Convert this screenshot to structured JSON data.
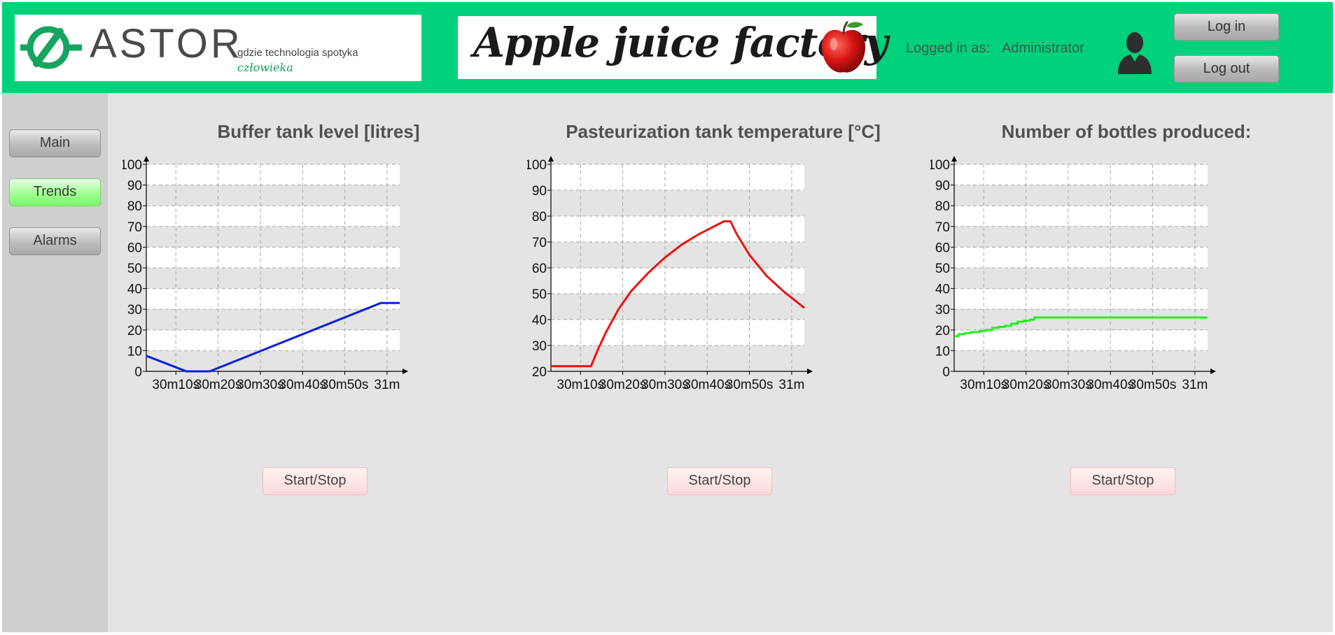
{
  "header": {
    "logo": {
      "word": "ASTOR",
      "tagline": "gdzie technologia spotyka",
      "script": "człowieka"
    },
    "banner_title": "Apple juice factory",
    "logged_in_label": "Logged in as:",
    "logged_in_user": "Administrator",
    "login_label": "Log in",
    "logout_label": "Log out",
    "icons": [
      "astor-logo-icon",
      "apple-icon",
      "user-icon"
    ]
  },
  "sidebar": {
    "items": [
      {
        "label": "Main",
        "active": false
      },
      {
        "label": "Trends",
        "active": true
      },
      {
        "label": "Alarms",
        "active": false
      }
    ]
  },
  "colors": {
    "header": "#00d17a",
    "active_nav": "#9cff8e",
    "buffer_series": "#0b1fe0",
    "temperature_series": "#f01010",
    "bottles_series": "#22f022"
  },
  "panels": [
    {
      "title": "Buffer tank level [litres]",
      "button_label": "Start/Stop"
    },
    {
      "title": "Pasteurization tank temperature [°C]",
      "button_label": "Start/Stop"
    },
    {
      "title": "Number of bottles produced:",
      "button_label": "Start/Stop"
    }
  ],
  "chart_data": [
    {
      "type": "line",
      "title": "Buffer tank level [litres]",
      "x_tick_labels": [
        "30m10s",
        "30m20s",
        "30m30s",
        "30m40s",
        "30m50s",
        "31m"
      ],
      "x_ticks_seconds": [
        10,
        20,
        30,
        40,
        50,
        60
      ],
      "xlim_seconds": [
        3,
        63
      ],
      "ylim": [
        0,
        100
      ],
      "y_ticks": [
        0,
        10,
        20,
        30,
        40,
        50,
        60,
        70,
        80,
        90,
        100
      ],
      "grid": true,
      "series": [
        {
          "color": "#0b1fe0",
          "x_seconds": [
            3,
            12.5,
            18,
            58.5,
            63
          ],
          "values": [
            7.5,
            0,
            0,
            33,
            33
          ]
        }
      ]
    },
    {
      "type": "line",
      "title": "Pasteurization tank temperature [°C]",
      "x_tick_labels": [
        "30m10s",
        "30m20s",
        "30m30s",
        "30m40s",
        "30m50s",
        "31m"
      ],
      "x_ticks_seconds": [
        10,
        20,
        30,
        40,
        50,
        60
      ],
      "xlim_seconds": [
        3,
        63
      ],
      "ylim": [
        20,
        100
      ],
      "y_ticks": [
        20,
        30,
        40,
        50,
        60,
        70,
        80,
        90,
        100
      ],
      "grid": true,
      "series": [
        {
          "color": "#f01010",
          "x_seconds": [
            3,
            12.5,
            14,
            16,
            19,
            22,
            26,
            30,
            34,
            38,
            41,
            44,
            45.5,
            47,
            50,
            54,
            58,
            63
          ],
          "values": [
            22,
            22,
            28,
            35,
            44,
            51,
            58,
            64,
            69,
            73,
            75.5,
            78,
            78,
            73,
            65,
            57,
            51,
            44.5
          ]
        }
      ]
    },
    {
      "type": "line",
      "title": "Number of bottles produced:",
      "x_tick_labels": [
        "30m10s",
        "30m20s",
        "30m30s",
        "30m40s",
        "30m50s",
        "31m"
      ],
      "x_ticks_seconds": [
        10,
        20,
        30,
        40,
        50,
        60
      ],
      "xlim_seconds": [
        3,
        63
      ],
      "ylim": [
        0,
        100
      ],
      "y_ticks": [
        0,
        10,
        20,
        30,
        40,
        50,
        60,
        70,
        80,
        90,
        100
      ],
      "grid": true,
      "series": [
        {
          "color": "#22f022",
          "step": true,
          "x_seconds": [
            3,
            4,
            5.5,
            7,
            9,
            10.5,
            12,
            13.5,
            15,
            16.5,
            18,
            19.5,
            21,
            22,
            63
          ],
          "values": [
            17,
            18,
            18.5,
            19,
            19.5,
            20,
            21,
            21.5,
            22,
            23,
            24,
            24.5,
            25,
            26,
            26
          ]
        }
      ]
    }
  ]
}
